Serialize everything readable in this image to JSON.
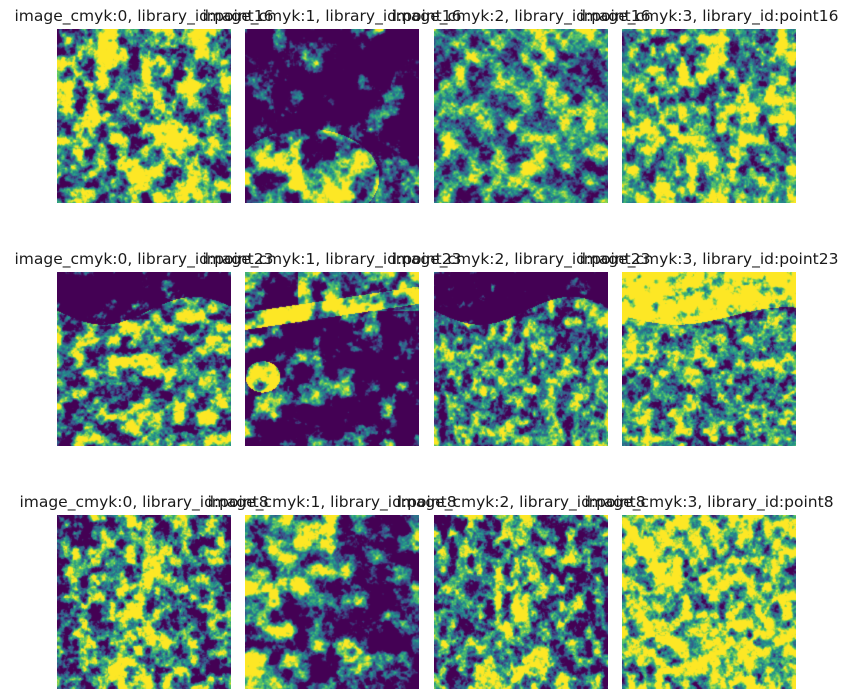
{
  "figure": {
    "rows": [
      {
        "library_id": "point16",
        "panels": [
          {
            "title": "image_cmyk:0, library_id:point16",
            "channel": "image-cmyk-0"
          },
          {
            "title": "image_cmyk:1, library_id:point16",
            "channel": "image-cmyk-1"
          },
          {
            "title": "image_cmyk:2, library_id:point16",
            "channel": "image-cmyk-2"
          },
          {
            "title": "image_cmyk:3, library_id:point16",
            "channel": "image-cmyk-3"
          }
        ]
      },
      {
        "library_id": "point23",
        "panels": [
          {
            "title": "image_cmyk:0, library_id:point23",
            "channel": "image-cmyk-0"
          },
          {
            "title": "image_cmyk:1, library_id:point23",
            "channel": "image-cmyk-1"
          },
          {
            "title": "image_cmyk:2, library_id:point23",
            "channel": "image-cmyk-2"
          },
          {
            "title": "image_cmyk:3, library_id:point23",
            "channel": "image-cmyk-3"
          }
        ]
      },
      {
        "library_id": "point8",
        "panels": [
          {
            "title": "image_cmyk:0, library_id:point8",
            "channel": "image-cmyk-0"
          },
          {
            "title": "image_cmyk:1, library_id:point8",
            "channel": "image-cmyk-1"
          },
          {
            "title": "image_cmyk:2, library_id:point8",
            "channel": "image-cmyk-2"
          },
          {
            "title": "image_cmyk:3, library_id:point8",
            "channel": "image-cmyk-3"
          }
        ]
      }
    ],
    "colormap": [
      "#440154",
      "#3b528b",
      "#21918c",
      "#5ec962",
      "#fde725"
    ]
  }
}
